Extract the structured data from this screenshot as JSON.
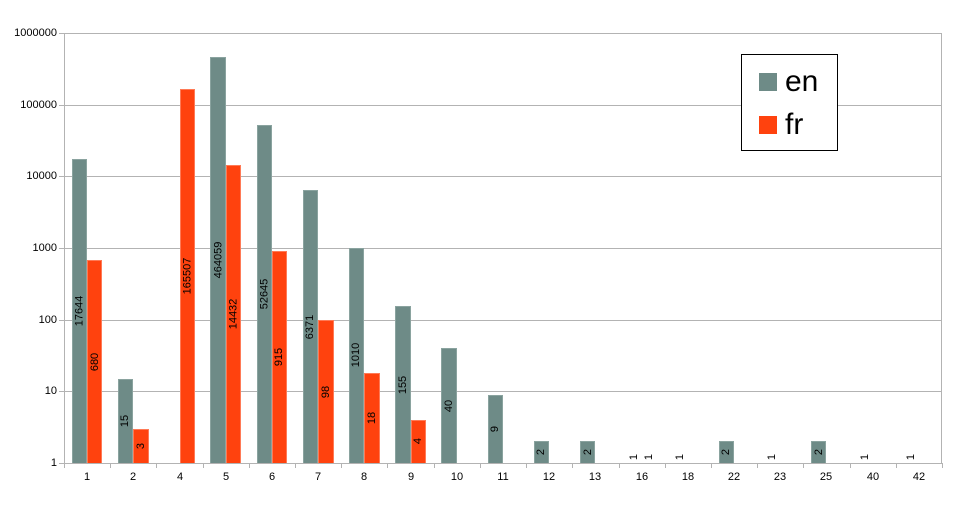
{
  "chart_data": {
    "type": "bar",
    "title": "",
    "xlabel": "",
    "ylabel": "",
    "yscale": "log",
    "ylim": [
      1,
      1000000
    ],
    "y_ticks": [
      "1",
      "10",
      "100",
      "1000",
      "10000",
      "100000",
      "1000000"
    ],
    "grid": true,
    "legend_position": "top-right",
    "categories": [
      "1",
      "2",
      "4",
      "5",
      "6",
      "7",
      "8",
      "9",
      "10",
      "11",
      "12",
      "13",
      "16",
      "18",
      "22",
      "23",
      "25",
      "40",
      "42"
    ],
    "series": [
      {
        "name": "en",
        "color": "#6e8b87",
        "values": [
          17644,
          15,
          null,
          464059,
          52645,
          6371,
          1010,
          155,
          40,
          9,
          2,
          2,
          1,
          1,
          2,
          1,
          2,
          1,
          1
        ]
      },
      {
        "name": "fr",
        "color": "#ff420e",
        "values": [
          680,
          3,
          165507,
          14432,
          915,
          98,
          18,
          4,
          null,
          null,
          null,
          null,
          1,
          null,
          null,
          null,
          null,
          null,
          null
        ]
      }
    ],
    "data_labels": true
  },
  "legend": {
    "items": [
      {
        "label": "en",
        "color": "#6e8b87"
      },
      {
        "label": "fr",
        "color": "#ff420e"
      }
    ]
  }
}
